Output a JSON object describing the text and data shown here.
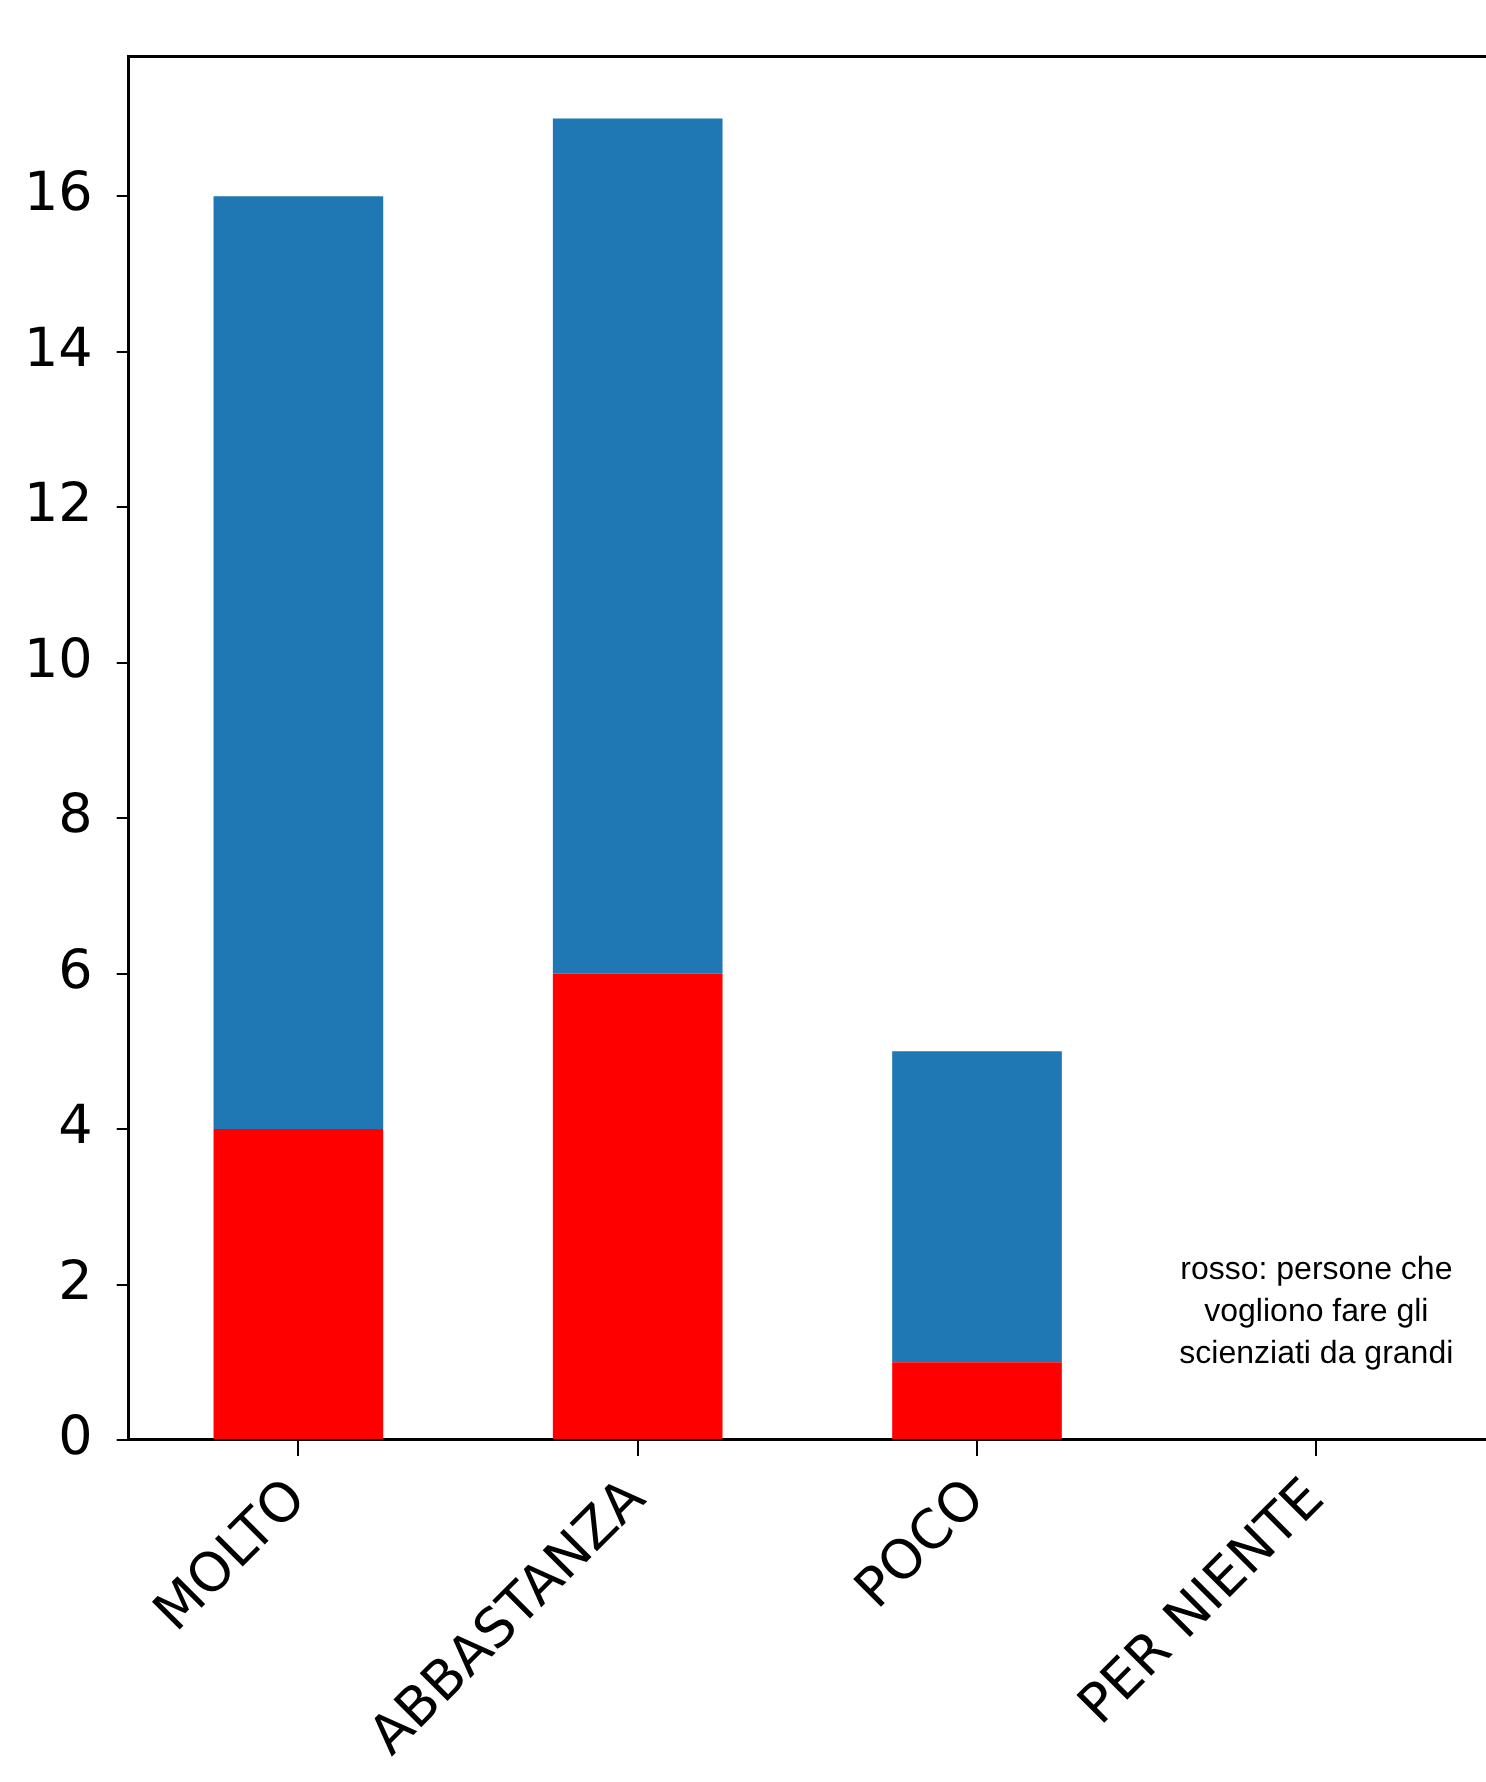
{
  "chart_data": {
    "type": "bar",
    "categories": [
      "MOLTO",
      "ABBASTANZA",
      "POCO",
      "PER NIENTE"
    ],
    "stacked": true,
    "series": [
      {
        "color": "#ff0000",
        "values": [
          4,
          6,
          1,
          0
        ]
      },
      {
        "color": "#1f77b4",
        "values": [
          12,
          11,
          4,
          0
        ]
      }
    ],
    "ylim": [
      0,
      17.8
    ],
    "yticks": [
      0,
      2,
      4,
      6,
      8,
      10,
      12,
      14,
      16
    ],
    "grid": false,
    "legend": false,
    "annotations": [
      "rosso: persone che vogliono fare gli scienziati da grandi"
    ]
  }
}
